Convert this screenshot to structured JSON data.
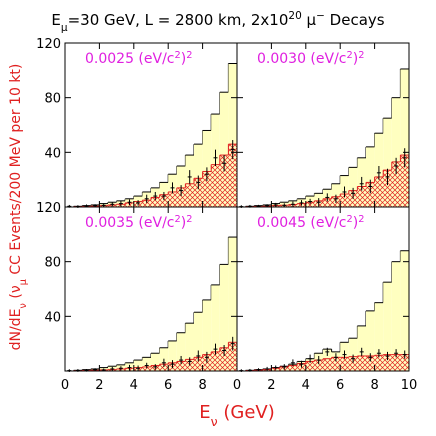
{
  "figure": {
    "title": [
      {
        "text": "E"
      },
      {
        "text": "μ",
        "pos": "sub"
      },
      {
        "text": "=30 GeV, L = 2800 km, 2x10"
      },
      {
        "text": "20",
        "pos": "sup"
      },
      {
        "text": " μ"
      },
      {
        "text": "−",
        "pos": "sup"
      },
      {
        "text": " Decays"
      }
    ],
    "y_label": [
      {
        "text": "dN/dE"
      },
      {
        "text": "ν",
        "pos": "sub"
      },
      {
        "text": "  ("
      },
      {
        "text": "ν"
      },
      {
        "text": "μ",
        "pos": "sub"
      },
      {
        "text": " CC Events/200 MeV per 10 kt)"
      }
    ],
    "x_label": [
      {
        "text": "E"
      },
      {
        "text": "ν",
        "pos": "sub"
      },
      {
        "text": "   (GeV)"
      }
    ]
  },
  "chart_data": [
    {
      "type": "histogram",
      "label": [
        {
          "text": "0.0025 (eV/c"
        },
        {
          "text": "2",
          "pos": "sup"
        },
        {
          "text": ")"
        },
        {
          "text": "2",
          "pos": "sup"
        }
      ],
      "bins": [
        0,
        0.5,
        1,
        1.5,
        2,
        2.5,
        3,
        3.5,
        4,
        4.5,
        5,
        5.5,
        6,
        6.5,
        7,
        7.5,
        8,
        8.5,
        9,
        9.5,
        10
      ],
      "series": [
        {
          "color": "#ffffc0",
          "values": [
            0,
            0.5,
            1,
            1.5,
            2.5,
            3.5,
            4.5,
            6,
            8,
            11,
            14,
            18,
            24,
            30,
            38,
            46,
            56,
            68,
            84,
            105
          ]
        },
        {
          "color": "#e02020",
          "pattern": "crosshatch",
          "values": [
            0,
            0.2,
            0.4,
            0.6,
            1,
            1.5,
            2,
            3,
            4,
            5,
            7,
            9,
            11,
            14,
            17,
            21,
            26,
            31,
            38,
            46
          ]
        }
      ],
      "points": {
        "values": [
          0.5,
          0.3,
          0.8,
          1,
          1.2,
          2,
          2.5,
          3.5,
          3,
          6,
          8,
          8,
          14,
          12,
          22,
          18,
          24,
          36,
          32,
          42
        ],
        "errors": [
          1,
          1,
          1,
          1,
          1.5,
          1.5,
          2,
          2,
          2,
          3,
          3,
          3,
          4,
          4,
          5,
          5,
          5,
          6,
          6,
          7
        ]
      },
      "xlim": [
        0,
        10
      ],
      "ylim": [
        0,
        120
      ],
      "xticks": [
        0,
        2,
        4,
        6,
        8,
        10
      ],
      "yticks": [
        40,
        80,
        120
      ],
      "show_xtick_labels": false,
      "show_ytick_labels": true
    },
    {
      "type": "histogram",
      "label": [
        {
          "text": "0.0030 (eV/c"
        },
        {
          "text": "2",
          "pos": "sup"
        },
        {
          "text": ")"
        },
        {
          "text": "2",
          "pos": "sup"
        }
      ],
      "bins": [
        0,
        0.5,
        1,
        1.5,
        2,
        2.5,
        3,
        3.5,
        4,
        4.5,
        5,
        5.5,
        6,
        6.5,
        7,
        7.5,
        8,
        8.5,
        9,
        9.5,
        10
      ],
      "series": [
        {
          "color": "#ffffc0",
          "values": [
            0,
            0.5,
            1,
            1.5,
            2.5,
            3.5,
            4.5,
            6,
            8,
            10,
            13,
            17,
            23,
            29,
            36,
            44,
            54,
            65,
            80,
            101
          ]
        },
        {
          "color": "#e02020",
          "pattern": "crosshatch",
          "values": [
            0,
            0.2,
            0.4,
            0.6,
            1,
            1.3,
            1.8,
            2.5,
            3.5,
            4.5,
            6,
            7.5,
            9.5,
            12,
            15,
            18,
            22,
            27,
            33,
            38
          ]
        }
      ],
      "points": {
        "values": [
          0.3,
          0.5,
          0.6,
          1,
          1.5,
          1.2,
          2,
          3,
          4,
          3.5,
          7,
          6,
          11,
          10,
          17,
          15,
          25,
          22,
          30,
          36
        ],
        "errors": [
          1,
          1,
          1,
          1,
          1.5,
          1.5,
          2,
          2,
          2,
          3,
          3,
          3,
          4,
          4,
          5,
          5,
          5,
          6,
          6,
          7
        ]
      },
      "xlim": [
        0,
        10
      ],
      "ylim": [
        0,
        120
      ],
      "xticks": [
        0,
        2,
        4,
        6,
        8,
        10
      ],
      "yticks": [
        40,
        80,
        120
      ],
      "show_xtick_labels": false,
      "show_ytick_labels": false
    },
    {
      "type": "histogram",
      "label": [
        {
          "text": "0.0035 (eV/c"
        },
        {
          "text": "2",
          "pos": "sup"
        },
        {
          "text": ")"
        },
        {
          "text": "2",
          "pos": "sup"
        }
      ],
      "bins": [
        0,
        0.5,
        1,
        1.5,
        2,
        2.5,
        3,
        3.5,
        4,
        4.5,
        5,
        5.5,
        6,
        6.5,
        7,
        7.5,
        8,
        8.5,
        9,
        9.5,
        10
      ],
      "series": [
        {
          "color": "#ffffc0",
          "values": [
            0,
            0.5,
            1,
            1.5,
            2.5,
            3.5,
            4.5,
            6,
            8,
            10,
            13,
            17,
            22,
            28,
            35,
            43,
            52,
            63,
            78,
            98
          ]
        },
        {
          "color": "#e02020",
          "pattern": "crosshatch",
          "values": [
            0,
            0.2,
            0.4,
            0.6,
            0.8,
            1,
            1.5,
            2,
            2.5,
            3,
            4,
            5,
            6,
            7,
            8.5,
            10,
            12,
            14,
            17,
            21
          ]
        }
      ],
      "points": {
        "values": [
          0.3,
          0.4,
          0.5,
          1,
          0.8,
          1.5,
          2,
          2.5,
          2,
          4,
          3,
          6,
          5,
          8,
          7,
          11,
          10,
          16,
          15,
          20
        ],
        "errors": [
          1,
          1,
          1,
          1,
          1,
          1.5,
          1.5,
          2,
          2,
          2,
          2,
          3,
          3,
          3,
          3,
          4,
          4,
          4,
          4,
          5
        ]
      },
      "xlim": [
        0,
        10
      ],
      "ylim": [
        0,
        120
      ],
      "xticks": [
        0,
        2,
        4,
        6,
        8
      ],
      "yticks": [
        40,
        80,
        120
      ],
      "show_xtick_labels": true,
      "show_ytick_labels": true
    },
    {
      "type": "histogram",
      "label": [
        {
          "text": "0.0045 (eV/c"
        },
        {
          "text": "2",
          "pos": "sup"
        },
        {
          "text": ")"
        },
        {
          "text": "2",
          "pos": "sup"
        }
      ],
      "bins": [
        0,
        0.5,
        1,
        1.5,
        2,
        2.5,
        3,
        3.5,
        4,
        4.5,
        5,
        5.5,
        6,
        6.5,
        7,
        7.5,
        8,
        8.5,
        9,
        9.5,
        10
      ],
      "series": [
        {
          "color": "#ffffc0",
          "values": [
            0,
            0.5,
            1,
            1.5,
            2.5,
            3.5,
            5,
            7,
            9,
            13,
            16,
            14,
            21,
            24,
            33,
            44,
            50,
            65,
            80,
            88
          ]
        },
        {
          "color": "#e02020",
          "pattern": "crosshatch",
          "values": [
            0,
            0.3,
            0.6,
            1,
            2,
            3,
            4,
            5.5,
            7,
            8,
            9,
            10,
            10,
            10.5,
            11,
            11,
            11.5,
            12,
            12,
            12
          ]
        }
      ],
      "points": {
        "values": [
          0.3,
          0.5,
          1,
          1.5,
          2.5,
          3,
          6,
          5,
          9,
          8,
          14,
          10,
          12,
          9,
          14,
          10,
          13,
          11,
          13,
          12
        ],
        "errors": [
          1,
          1,
          1,
          1.5,
          1.5,
          2,
          2.5,
          2.5,
          3,
          3,
          3,
          3,
          3,
          3,
          3,
          3,
          3,
          3,
          3,
          3
        ]
      },
      "xlim": [
        0,
        10
      ],
      "ylim": [
        0,
        120
      ],
      "xticks": [
        0,
        2,
        4,
        6,
        8,
        10
      ],
      "yticks": [
        40,
        80,
        120
      ],
      "show_xtick_labels": true,
      "show_ytick_labels": false
    }
  ]
}
